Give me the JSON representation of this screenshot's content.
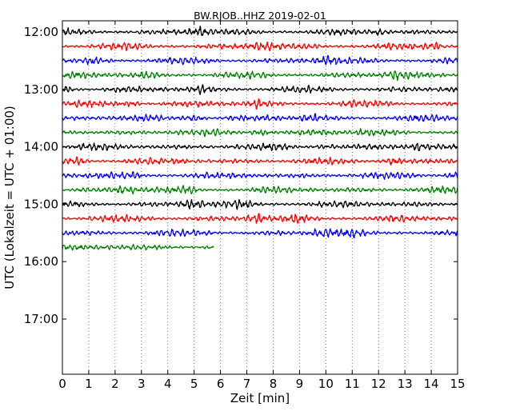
{
  "chart_data": {
    "type": "line",
    "title": "BW.RJOB..HHZ 2019-02-01",
    "xlabel": "Zeit  [min]",
    "ylabel": "UTC (Lokalzeit = UTC + 01:00)",
    "xlim": [
      0,
      15
    ],
    "x_ticks": [
      0,
      1,
      2,
      3,
      4,
      5,
      6,
      7,
      8,
      9,
      10,
      11,
      12,
      13,
      14,
      15
    ],
    "x_tick_labels": [
      "0",
      "1",
      "2",
      "3",
      "4",
      "5",
      "6",
      "7",
      "8",
      "9",
      "10",
      "11",
      "12",
      "13",
      "14",
      "15"
    ],
    "y_tick_labels": [
      "12:00",
      "13:00",
      "14:00",
      "15:00",
      "16:00",
      "17:00"
    ],
    "y_range_hours": [
      "12:00",
      "18:00"
    ],
    "vertical_grid": "dotted",
    "trace_interval_min": 15,
    "trace_colors": [
      "#000000",
      "#ff0000",
      "#0000ff",
      "#008000"
    ],
    "traces": [
      {
        "start": "12:00",
        "duration_min": 15,
        "color": "#000000"
      },
      {
        "start": "12:15",
        "duration_min": 15,
        "color": "#ff0000"
      },
      {
        "start": "12:30",
        "duration_min": 15,
        "color": "#0000ff"
      },
      {
        "start": "12:45",
        "duration_min": 15,
        "color": "#008000"
      },
      {
        "start": "13:00",
        "duration_min": 15,
        "color": "#000000"
      },
      {
        "start": "13:15",
        "duration_min": 15,
        "color": "#ff0000"
      },
      {
        "start": "13:30",
        "duration_min": 15,
        "color": "#0000ff"
      },
      {
        "start": "13:45",
        "duration_min": 15,
        "color": "#008000"
      },
      {
        "start": "14:00",
        "duration_min": 15,
        "color": "#000000"
      },
      {
        "start": "14:15",
        "duration_min": 15,
        "color": "#ff0000"
      },
      {
        "start": "14:30",
        "duration_min": 15,
        "color": "#0000ff"
      },
      {
        "start": "14:45",
        "duration_min": 15,
        "color": "#008000"
      },
      {
        "start": "15:00",
        "duration_min": 15,
        "color": "#000000"
      },
      {
        "start": "15:15",
        "duration_min": 15,
        "color": "#ff0000"
      },
      {
        "start": "15:30",
        "duration_min": 15,
        "color": "#0000ff"
      },
      {
        "start": "15:45",
        "duration_min": 5.75,
        "color": "#008000"
      }
    ]
  }
}
